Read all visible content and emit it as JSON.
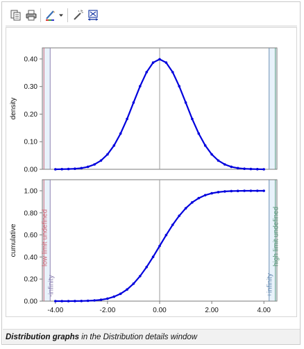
{
  "toolbar": {
    "buttons": [
      {
        "id": "copy",
        "icon": "copy-icon"
      },
      {
        "id": "print",
        "icon": "printer-icon"
      },
      {
        "id": "series-style",
        "icon": "pen-color-icon"
      },
      {
        "id": "dropdown",
        "icon": "chevron-down-icon"
      },
      {
        "id": "tools",
        "icon": "wand-icon"
      },
      {
        "id": "zoom-fit",
        "icon": "axis-box-icon"
      }
    ]
  },
  "caption": {
    "bold": "Distribution graphs",
    "rest": " in the Distribution details window"
  },
  "colors": {
    "curve": "#0000dd",
    "low_limit": "#cc6b7a",
    "high_limit": "#5c9a7e",
    "limit_band": "#e8f2fb",
    "axis": "#7a7a7a",
    "zero_line": "#9a9a9a"
  },
  "chart_data": [
    {
      "type": "line",
      "name": "density",
      "title": "",
      "xlabel": "",
      "ylabel": "density",
      "xlim": [
        -4.5,
        4.5
      ],
      "ylim": [
        0,
        0.42
      ],
      "yticks": [
        "0.00",
        "0.10",
        "0.20",
        "0.30",
        "0.40"
      ],
      "ytick_values": [
        0,
        0.1,
        0.2,
        0.3,
        0.4
      ],
      "grid": false,
      "series": [
        {
          "x": [
            -4.0,
            -3.75,
            -3.5,
            -3.25,
            -3.0,
            -2.75,
            -2.5,
            -2.25,
            -2.0,
            -1.75,
            -1.5,
            -1.25,
            -1.0,
            -0.75,
            -0.5,
            -0.25,
            0.0,
            0.25,
            0.5,
            0.75,
            1.0,
            1.25,
            1.5,
            1.75,
            2.0,
            2.25,
            2.5,
            2.75,
            3.0,
            3.25,
            3.5,
            3.75,
            4.0
          ],
          "values": [
            0.0001,
            0.0004,
            0.0009,
            0.002,
            0.0044,
            0.0091,
            0.0175,
            0.0317,
            0.054,
            0.0863,
            0.1295,
            0.1826,
            0.242,
            0.3011,
            0.3521,
            0.3867,
            0.3989,
            0.3867,
            0.3521,
            0.3011,
            0.242,
            0.1826,
            0.1295,
            0.0863,
            0.054,
            0.0317,
            0.0175,
            0.0091,
            0.0044,
            0.002,
            0.0009,
            0.0004,
            0.0001
          ]
        }
      ]
    },
    {
      "type": "line",
      "name": "cumulative",
      "title": "",
      "xlabel": "",
      "ylabel": "cumulative",
      "xlim": [
        -4.5,
        4.5
      ],
      "ylim": [
        0,
        1.05
      ],
      "yticks": [
        "0.00",
        "0.20",
        "0.40",
        "0.60",
        "0.80",
        "1.00"
      ],
      "ytick_values": [
        0,
        0.2,
        0.4,
        0.6,
        0.8,
        1.0
      ],
      "xticks": [
        "-4.00",
        "-2.00",
        "0.00",
        "2.00",
        "4.00"
      ],
      "xtick_values": [
        -4,
        -2,
        0,
        2,
        4
      ],
      "grid": false,
      "annotations": {
        "low_limit_label": "low limit undefined",
        "low_value_label": "-infinity",
        "high_limit_label": "high limit undefined",
        "high_value_label": "+infinity"
      },
      "series": [
        {
          "x": [
            -4.0,
            -3.75,
            -3.5,
            -3.25,
            -3.0,
            -2.75,
            -2.5,
            -2.25,
            -2.0,
            -1.75,
            -1.5,
            -1.25,
            -1.0,
            -0.75,
            -0.5,
            -0.25,
            0.0,
            0.25,
            0.5,
            0.75,
            1.0,
            1.25,
            1.5,
            1.75,
            2.0,
            2.25,
            2.5,
            2.75,
            3.0,
            3.25,
            3.5,
            3.75,
            4.0
          ],
          "values": [
            0.0,
            0.0001,
            0.0002,
            0.0006,
            0.0013,
            0.003,
            0.0062,
            0.0122,
            0.0228,
            0.0401,
            0.0668,
            0.1056,
            0.1587,
            0.2266,
            0.3085,
            0.4013,
            0.5,
            0.5987,
            0.6915,
            0.7734,
            0.8413,
            0.8944,
            0.9332,
            0.9599,
            0.9772,
            0.9878,
            0.9938,
            0.997,
            0.9987,
            0.9994,
            0.9998,
            0.9999,
            1.0
          ]
        }
      ]
    }
  ]
}
